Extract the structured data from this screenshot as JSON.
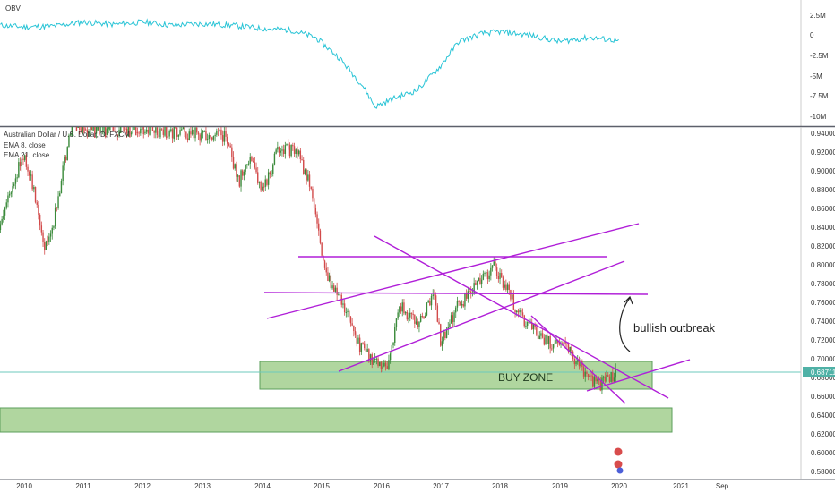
{
  "theme": {
    "obv_color": "#29c4d6",
    "candle_up": "#3a8a3a",
    "candle_down": "#d24a4a",
    "trendline": "#b01ed8",
    "zone_fill": "#a3cf8f",
    "zone_stroke": "#3f8f3f",
    "price_line": "#6dc9bd",
    "price_tag_bg": "#4fb1a6"
  },
  "obv_pane": {
    "label": "OBV",
    "axis_ticks": [
      "2.5M",
      "0",
      "-2.5M",
      "-5M",
      "-7.5M",
      "-10M"
    ]
  },
  "price_pane": {
    "legend_title": "Australian Dollar / U.S. Dollar, D, FXCM",
    "legend_lines": [
      "EMA 8, close",
      "EMA 21, close"
    ],
    "axis_ticks": [
      "0.94000",
      "0.92000",
      "0.90000",
      "0.88000",
      "0.86000",
      "0.84000",
      "0.82000",
      "0.80000",
      "0.78000",
      "0.76000",
      "0.74000",
      "0.72000",
      "0.70000",
      "0.68000",
      "0.66000",
      "0.64000",
      "0.62000",
      "0.60000",
      "0.58000"
    ],
    "last_price": "0.68711",
    "buy_zone_label": "BUY ZONE",
    "annotation": "bullish outbreak"
  },
  "time_axis": {
    "labels": [
      "2010",
      "2011",
      "2012",
      "2013",
      "2014",
      "2015",
      "2016",
      "2017",
      "2018",
      "2019",
      "2020",
      "2021",
      "Sep"
    ]
  },
  "chart_data": [
    {
      "type": "line",
      "title": "OBV",
      "x_range": [
        2009.6,
        2020.0
      ],
      "ylim": [
        -10000000,
        3000000
      ],
      "series": [
        {
          "x": [
            2009.6,
            2010.0,
            2010.5,
            2011.0,
            2011.5,
            2012.0,
            2012.5,
            2013.0,
            2013.5,
            2014.0,
            2014.5,
            2014.9,
            2015.3,
            2015.7,
            2015.9,
            2016.2,
            2016.6,
            2017.0,
            2017.3,
            2017.7,
            2018.0,
            2018.5,
            2019.0,
            2019.5,
            2019.9,
            2020.0
          ],
          "values": [
            1500000,
            1300000,
            1400000,
            1900000,
            1600000,
            1900000,
            1500000,
            1700000,
            1500000,
            1100000,
            900000,
            0,
            -2500000,
            -6000000,
            -8500000,
            -7500000,
            -6500000,
            -3500000,
            -500000,
            500000,
            700000,
            300000,
            -500000,
            0,
            -300000,
            -500000
          ]
        }
      ]
    },
    {
      "type": "line",
      "title": "Australian Dollar / U.S. Dollar, D, FXCM",
      "x_range": [
        2009.6,
        2020.0
      ],
      "ylim": [
        0.58,
        0.95
      ],
      "series": [
        {
          "x": [
            2009.6,
            2009.8,
            2010.0,
            2010.2,
            2010.35,
            2010.5,
            2010.7,
            2010.8,
            2013.4,
            2013.6,
            2013.8,
            2014.0,
            2014.3,
            2014.6,
            2014.8,
            2015.0,
            2015.15,
            2015.3,
            2015.6,
            2015.85,
            2016.1,
            2016.3,
            2016.6,
            2016.9,
            2017.0,
            2017.3,
            2017.6,
            2017.9,
            2018.1,
            2018.3,
            2018.5,
            2018.8,
            2019.0,
            2019.3,
            2019.5,
            2019.7,
            2019.85,
            2019.95
          ],
          "values": [
            0.84,
            0.89,
            0.92,
            0.87,
            0.82,
            0.85,
            0.92,
            0.95,
            0.94,
            0.89,
            0.92,
            0.88,
            0.93,
            0.92,
            0.89,
            0.82,
            0.78,
            0.77,
            0.72,
            0.7,
            0.69,
            0.76,
            0.74,
            0.77,
            0.72,
            0.76,
            0.78,
            0.8,
            0.78,
            0.75,
            0.74,
            0.72,
            0.72,
            0.7,
            0.68,
            0.675,
            0.684,
            0.687
          ]
        }
      ]
    }
  ]
}
